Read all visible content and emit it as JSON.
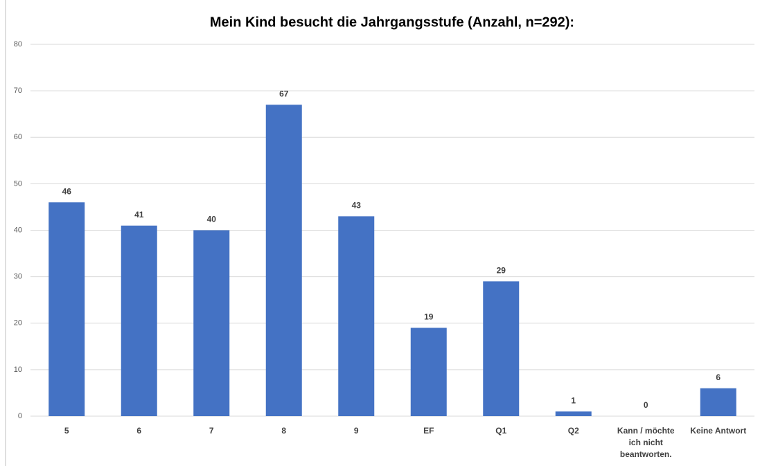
{
  "chart_data": {
    "type": "bar",
    "title": "Mein Kind besucht die Jahrgangsstufe (Anzahl, n=292):",
    "categories": [
      "5",
      "6",
      "7",
      "8",
      "9",
      "EF",
      "Q1",
      "Q2",
      "Kann / möchte ich nicht beantworten.",
      "Keine Antwort"
    ],
    "values": [
      46,
      41,
      40,
      67,
      43,
      19,
      29,
      1,
      0,
      6
    ],
    "color": "#4472c4",
    "ylim": [
      0,
      80
    ],
    "yticks": [
      0,
      10,
      20,
      30,
      40,
      50,
      60,
      70,
      80
    ],
    "grid": true
  }
}
